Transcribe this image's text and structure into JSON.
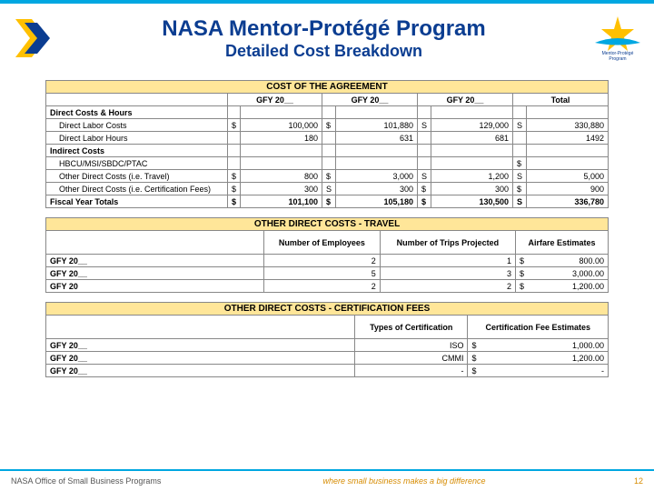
{
  "header": {
    "title": "NASA Mentor-Protégé Program",
    "subtitle": "Detailed Cost Breakdown",
    "logo_text_top": "Mentor-Protégé",
    "logo_text_bottom": "Program",
    "chevron_colors": {
      "outer": "#ffc000",
      "inner": "#0b3d91"
    },
    "star_color": "#ffc000",
    "swoosh_color": "#00a7e1"
  },
  "table1": {
    "section_title": "COST OF THE AGREEMENT",
    "background_color": "#ffe699",
    "col_headers": [
      "",
      "GFY 20__",
      "GFY 20__",
      "GFY 20__",
      "Total"
    ],
    "rows": [
      {
        "label": "Direct Costs & Hours",
        "bold": true,
        "indent": false,
        "cells": [
          "",
          "",
          "",
          "",
          "",
          "",
          "",
          ""
        ]
      },
      {
        "label": "Direct Labor Costs",
        "bold": false,
        "indent": true,
        "cells": [
          "$",
          "100,000",
          "$",
          "101,880",
          "S",
          "129,000",
          "S",
          "330,880"
        ]
      },
      {
        "label": "Direct Labor Hours",
        "bold": false,
        "indent": true,
        "cells": [
          "",
          "180",
          "",
          "631",
          "",
          "681",
          "",
          "1492"
        ]
      },
      {
        "label": "Indirect Costs",
        "bold": true,
        "indent": false,
        "cells": [
          "",
          "",
          "",
          "",
          "",
          "",
          "",
          ""
        ]
      },
      {
        "label": "HBCU/MSI/SBDC/PTAC",
        "bold": false,
        "indent": true,
        "cells": [
          "",
          "",
          "",
          "",
          "",
          "",
          "$",
          ""
        ]
      },
      {
        "label": "Other Direct Costs (i.e. Travel)",
        "bold": false,
        "indent": true,
        "cells": [
          "$",
          "800",
          "$",
          "3,000",
          "S",
          "1,200",
          "S",
          "5,000"
        ]
      },
      {
        "label": "Other Direct Costs (i.e. Certification Fees)",
        "bold": false,
        "indent": true,
        "cells": [
          "$",
          "300",
          "S",
          "300",
          "$",
          "300",
          "$",
          "900"
        ]
      },
      {
        "label": "Fiscal Year Totals",
        "bold": true,
        "indent": false,
        "totals": true,
        "cells": [
          "$",
          "101,100",
          "$",
          "105,180",
          "$",
          "130,500",
          "S",
          "336,780"
        ]
      }
    ]
  },
  "table2": {
    "section_title": "OTHER DIRECT COSTS - TRAVEL",
    "col_headers": [
      "",
      "Number of Employees",
      "Number of Trips Projected",
      "Airfare Estimates"
    ],
    "rows": [
      {
        "label": "GFY 20__",
        "cells": [
          "2",
          "1",
          "$",
          "800.00"
        ]
      },
      {
        "label": "GFY 20__",
        "cells": [
          "5",
          "3",
          "$",
          "3,000.00"
        ]
      },
      {
        "label": "GFY 20",
        "cells": [
          "2",
          "2",
          "$",
          "1,200.00"
        ]
      }
    ]
  },
  "table3": {
    "section_title": "OTHER DIRECT COSTS - CERTIFICATION FEES",
    "col_headers": [
      "",
      "Types of Certification",
      "Certification Fee Estimates"
    ],
    "rows": [
      {
        "label": "GFY 20__",
        "cells": [
          "ISO",
          "$",
          "1,000.00"
        ]
      },
      {
        "label": "GFY 20__",
        "cells": [
          "CMMI",
          "$",
          "1,200.00"
        ]
      },
      {
        "label": "GFY 20__",
        "cells": [
          "-",
          "$",
          "-"
        ]
      }
    ]
  },
  "footer": {
    "left": "NASA Office of Small Business Programs",
    "center": "where small business makes a big difference",
    "page": "12"
  }
}
